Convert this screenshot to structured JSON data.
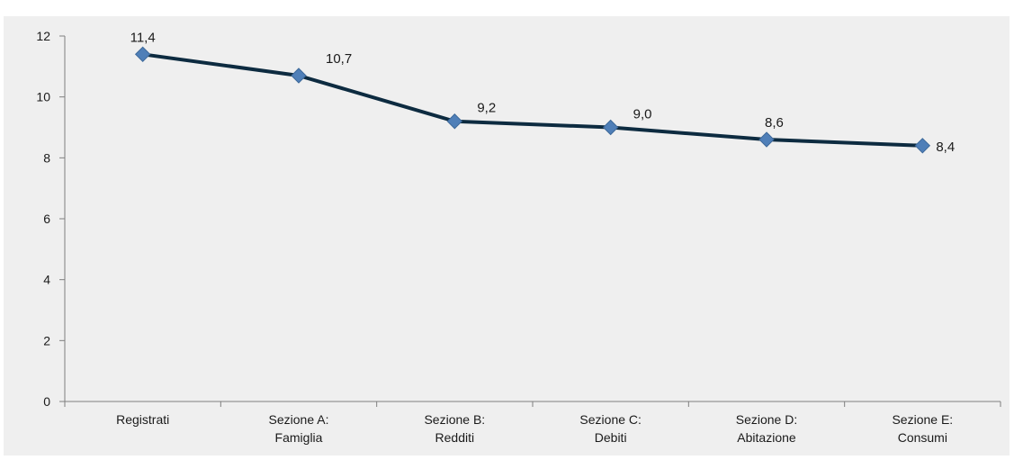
{
  "chart_data": {
    "type": "line",
    "title": "",
    "categories": [
      "Registrati",
      "Sezione A:\nFamiglia",
      "Sezione B:\nRedditi",
      "Sezione C:\nDebiti",
      "Sezione D:\nAbitazione",
      "Sezione E:\nConsumi"
    ],
    "values": [
      11.4,
      10.7,
      9.2,
      9.0,
      8.6,
      8.4
    ],
    "data_labels": [
      "11,4",
      "10,7",
      "9,2",
      "9,0",
      "8,6",
      "8,4"
    ],
    "y_ticks": [
      "0",
      "2",
      "4",
      "6",
      "8",
      "10",
      "12"
    ],
    "ylim": [
      0,
      12
    ],
    "xlabel": "",
    "ylabel": "",
    "grid": false,
    "colors": {
      "line": "#0d2b40",
      "marker": "#4f7fb8",
      "marker_border": "#3c6899",
      "background": "#efefef",
      "axis": "#7f7f7f"
    }
  }
}
